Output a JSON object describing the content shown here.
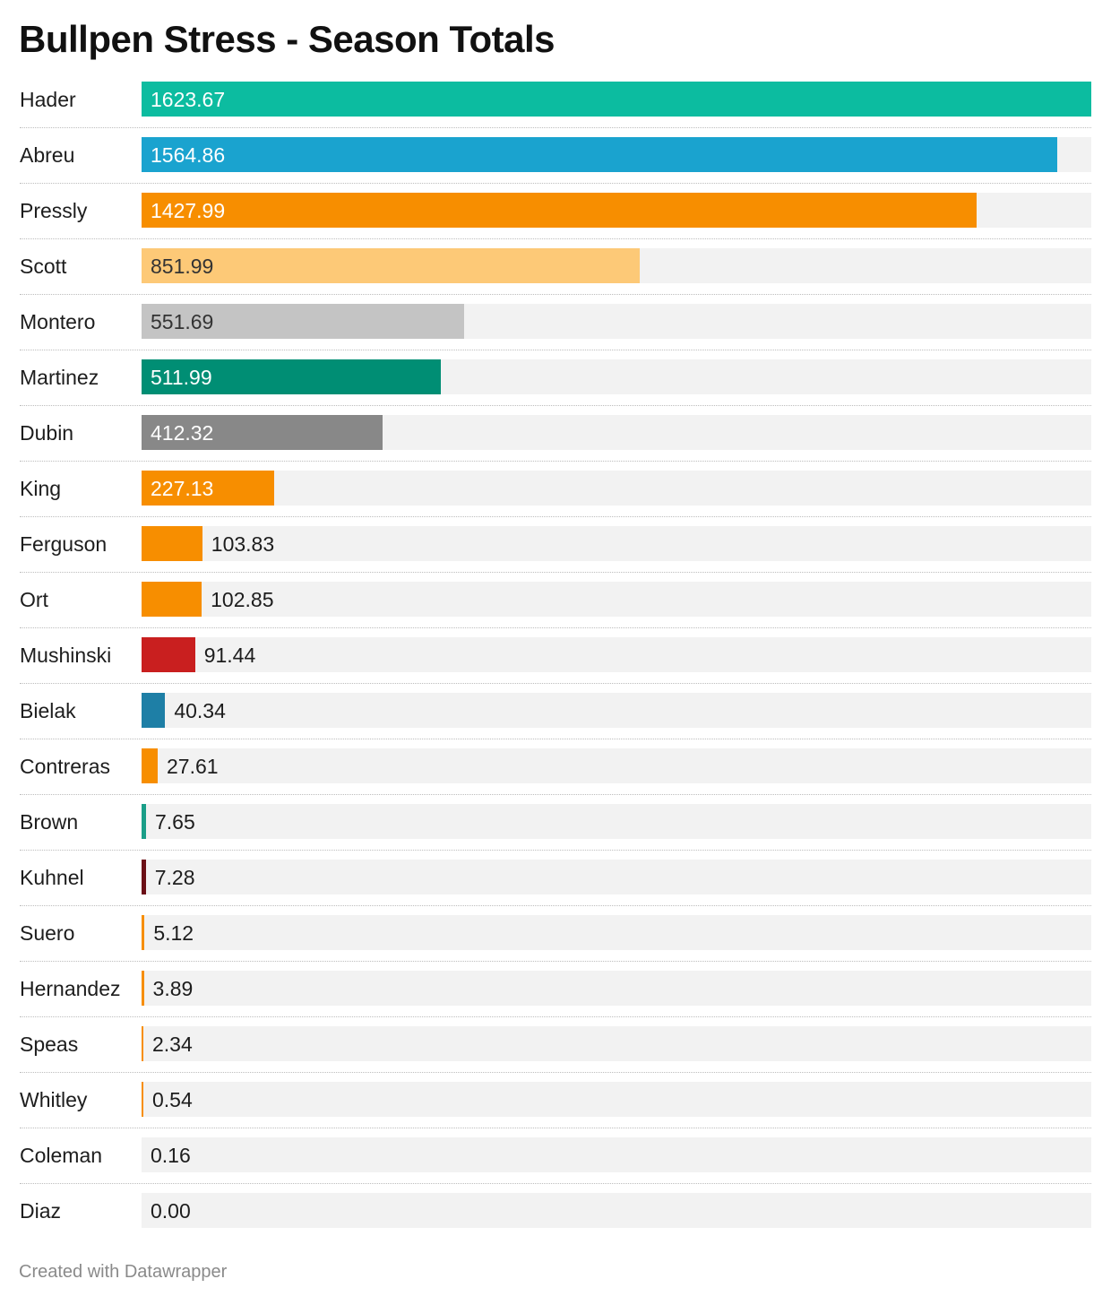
{
  "title": "Bullpen Stress - Season Totals",
  "credit": "Created with Datawrapper",
  "colors": {
    "track": "#f2f2f2",
    "label_light": "#ffffff",
    "label_dark": "#333333"
  },
  "chart_data": {
    "type": "bar",
    "orientation": "horizontal",
    "title": "Bullpen Stress - Season Totals",
    "xlim": [
      0,
      1623.67
    ],
    "grid": false,
    "categories": [
      "Hader",
      "Abreu",
      "Pressly",
      "Scott",
      "Montero",
      "Martinez",
      "Dubin",
      "King",
      "Ferguson",
      "Ort",
      "Mushinski",
      "Bielak",
      "Contreras",
      "Brown",
      "Kuhnel",
      "Suero",
      "Hernandez",
      "Speas",
      "Whitley",
      "Coleman",
      "Diaz"
    ],
    "values": [
      1623.67,
      1564.86,
      1427.99,
      851.99,
      551.69,
      511.99,
      412.32,
      227.13,
      103.83,
      102.85,
      91.44,
      40.34,
      27.61,
      7.65,
      7.28,
      5.12,
      3.89,
      2.34,
      0.54,
      0.16,
      0.0
    ],
    "value_labels": [
      "1623.67",
      "1564.86",
      "1427.99",
      "851.99",
      "551.69",
      "511.99",
      "412.32",
      "227.13",
      "103.83",
      "102.85",
      "91.44",
      "40.34",
      "27.61",
      "7.65",
      "7.28",
      "5.12",
      "3.89",
      "2.34",
      "0.54",
      "0.16",
      "0.00"
    ],
    "bar_colors": [
      "#0cbca0",
      "#1aa3cf",
      "#f78e00",
      "#fdc977",
      "#c4c4c4",
      "#008e74",
      "#888888",
      "#f78e00",
      "#f78e00",
      "#f78e00",
      "#c91f1f",
      "#1e7fa6",
      "#f78e00",
      "#1a9e88",
      "#6b0f16",
      "#f78e00",
      "#f78e00",
      "#f78e00",
      "#f78e00",
      "#f78e00",
      "#f78e00"
    ],
    "label_colors": [
      "#ffffff",
      "#ffffff",
      "#ffffff",
      "#333333",
      "#333333",
      "#ffffff",
      "#ffffff",
      "#ffffff",
      "#1d1d1d",
      "#1d1d1d",
      "#1d1d1d",
      "#1d1d1d",
      "#1d1d1d",
      "#1d1d1d",
      "#1d1d1d",
      "#1d1d1d",
      "#1d1d1d",
      "#1d1d1d",
      "#1d1d1d",
      "#1d1d1d",
      "#1d1d1d"
    ]
  }
}
